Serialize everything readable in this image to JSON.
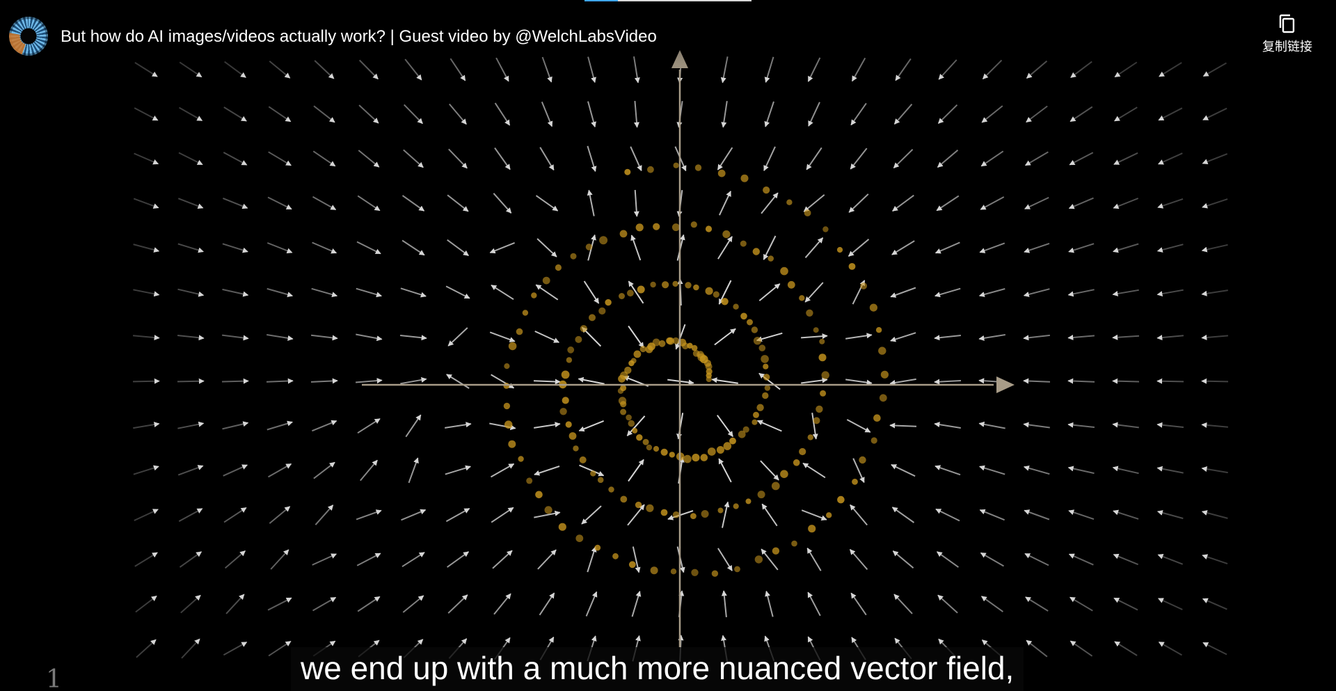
{
  "header": {
    "title": "But how do AI images/videos actually work? | Guest video by @WelchLabsVideo"
  },
  "actions": {
    "copy_link_label": "复制链接"
  },
  "captions": {
    "text": "we end up with a much more nuanced vector field,"
  },
  "frame": {
    "corner_glyph": "1"
  },
  "colors": {
    "background": "#000000",
    "axis": "#a89c88",
    "field_arrows": "#d6d6d6",
    "particles": "#c8961e",
    "progress_played": "#3ea6ff"
  },
  "icons": {
    "copy": "copy-icon",
    "avatar": "channel-avatar"
  }
}
